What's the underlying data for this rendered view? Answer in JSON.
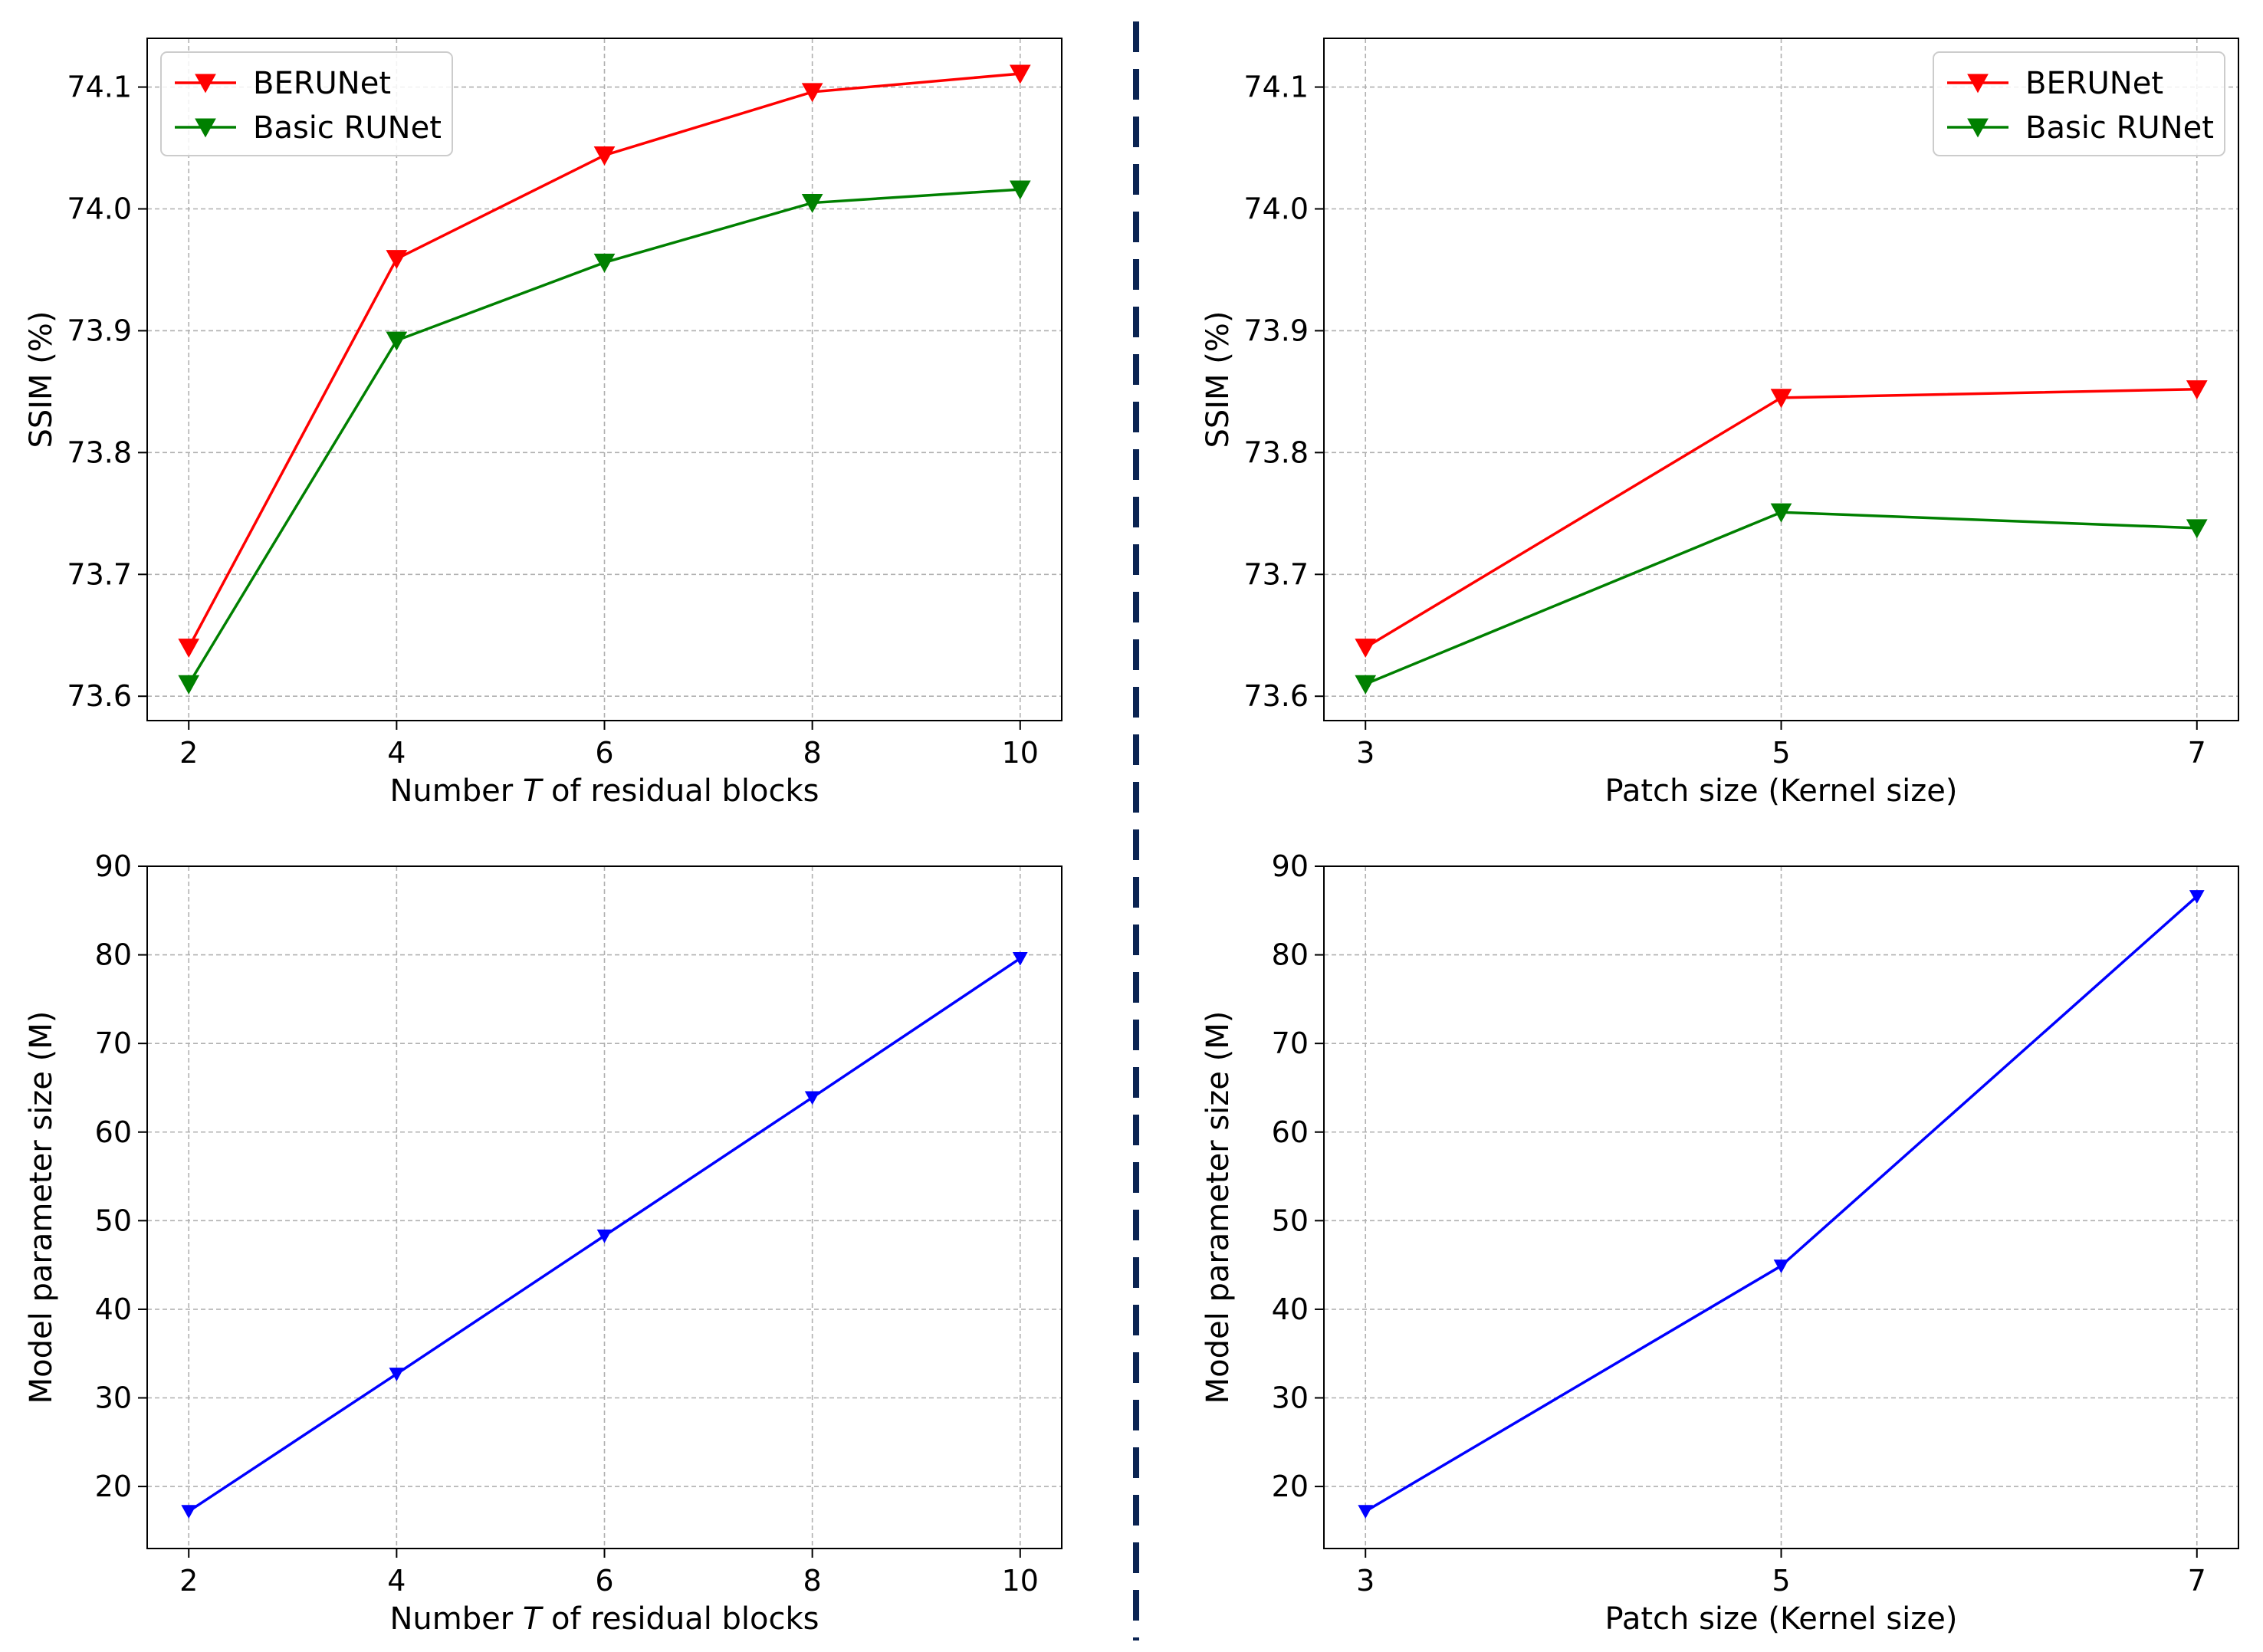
{
  "colors": {
    "berunet": "#ff0000",
    "basic_runet": "#008000",
    "params": "#0000ff",
    "divider": "#0b2452",
    "grid": "#b0b0b0"
  },
  "chart_data": [
    {
      "id": "top-left",
      "type": "line",
      "title": "",
      "xlabel_prefix": "Number ",
      "xlabel_var": "T",
      "xlabel_suffix": " of residual blocks",
      "ylabel": "SSIM (%)",
      "x": [
        2,
        4,
        6,
        8,
        10
      ],
      "x_tick_labels": [
        "2",
        "4",
        "6",
        "8",
        "10"
      ],
      "y_ticks": [
        73.6,
        73.7,
        73.8,
        73.9,
        74.0,
        74.1
      ],
      "y_tick_labels": [
        "73.6",
        "73.7",
        "73.8",
        "73.9",
        "74.0",
        "74.1"
      ],
      "xlim": [
        1.6,
        10.4
      ],
      "ylim": [
        73.58,
        74.14
      ],
      "grid": true,
      "legend": "top-left",
      "series": [
        {
          "name": "BERUNet",
          "color_key": "berunet",
          "values": [
            73.64,
            73.959,
            74.044,
            74.096,
            74.111
          ]
        },
        {
          "name": "Basic RUNet",
          "color_key": "basic_runet",
          "values": [
            73.61,
            73.892,
            73.956,
            74.005,
            74.016
          ]
        }
      ]
    },
    {
      "id": "top-right",
      "type": "line",
      "title": "",
      "xlabel": "Patch size (Kernel size)",
      "ylabel": "SSIM (%)",
      "x": [
        3,
        5,
        7
      ],
      "x_tick_labels": [
        "3",
        "5",
        "7"
      ],
      "y_ticks": [
        73.6,
        73.7,
        73.8,
        73.9,
        74.0,
        74.1
      ],
      "y_tick_labels": [
        "73.6",
        "73.7",
        "73.8",
        "73.9",
        "74.0",
        "74.1"
      ],
      "xlim": [
        2.8,
        7.2
      ],
      "ylim": [
        73.58,
        74.14
      ],
      "grid": true,
      "legend": "top-right",
      "series": [
        {
          "name": "BERUNet",
          "color_key": "berunet",
          "values": [
            73.64,
            73.845,
            73.852
          ]
        },
        {
          "name": "Basic RUNet",
          "color_key": "basic_runet",
          "values": [
            73.61,
            73.751,
            73.738
          ]
        }
      ]
    },
    {
      "id": "bottom-left",
      "type": "line",
      "title": "",
      "xlabel_prefix": "Number ",
      "xlabel_var": "T",
      "xlabel_suffix": " of residual blocks",
      "ylabel": "Model parameter size (M)",
      "x": [
        2,
        4,
        6,
        8,
        10
      ],
      "x_tick_labels": [
        "2",
        "4",
        "6",
        "8",
        "10"
      ],
      "y_ticks": [
        20,
        30,
        40,
        50,
        60,
        70,
        80,
        90
      ],
      "y_tick_labels": [
        "20",
        "30",
        "40",
        "50",
        "60",
        "70",
        "80",
        "90"
      ],
      "xlim": [
        1.6,
        10.4
      ],
      "ylim": [
        13.0,
        90.0
      ],
      "grid": true,
      "legend": "none",
      "series": [
        {
          "name": "Model parameter size",
          "color_key": "params",
          "values": [
            17.2,
            32.7,
            48.3,
            63.9,
            79.6
          ]
        }
      ]
    },
    {
      "id": "bottom-right",
      "type": "line",
      "title": "",
      "xlabel": "Patch size (Kernel size)",
      "ylabel": "Model parameter size (M)",
      "x": [
        3,
        5,
        7
      ],
      "x_tick_labels": [
        "3",
        "5",
        "7"
      ],
      "y_ticks": [
        20,
        30,
        40,
        50,
        60,
        70,
        80,
        90
      ],
      "y_tick_labels": [
        "20",
        "30",
        "40",
        "50",
        "60",
        "70",
        "80",
        "90"
      ],
      "xlim": [
        2.8,
        7.2
      ],
      "ylim": [
        13.0,
        90.0
      ],
      "grid": true,
      "legend": "none",
      "series": [
        {
          "name": "Model parameter size",
          "color_key": "params",
          "values": [
            17.2,
            44.9,
            86.6
          ]
        }
      ]
    }
  ]
}
